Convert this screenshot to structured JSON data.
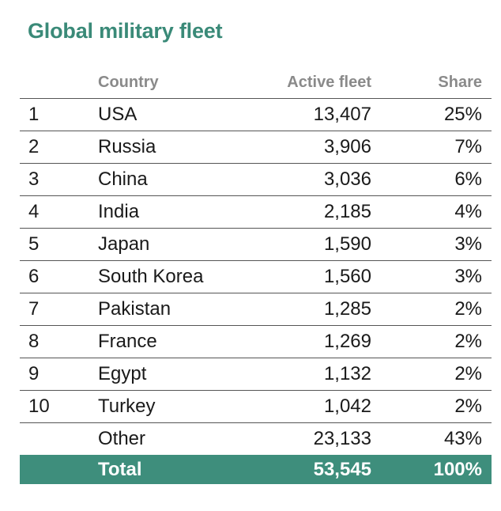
{
  "title": "Global military fleet",
  "chart_data": {
    "type": "table",
    "title": "Global military fleet",
    "columns": [
      "",
      "Country",
      "Active fleet",
      "Share"
    ],
    "rows": [
      {
        "rank": "1",
        "country": "USA",
        "fleet": "13,407",
        "share": "25%"
      },
      {
        "rank": "2",
        "country": "Russia",
        "fleet": "3,906",
        "share": "7%"
      },
      {
        "rank": "3",
        "country": "China",
        "fleet": "3,036",
        "share": "6%"
      },
      {
        "rank": "4",
        "country": "India",
        "fleet": "2,185",
        "share": "4%"
      },
      {
        "rank": "5",
        "country": "Japan",
        "fleet": "1,590",
        "share": "3%"
      },
      {
        "rank": "6",
        "country": "South Korea",
        "fleet": "1,560",
        "share": "3%"
      },
      {
        "rank": "7",
        "country": "Pakistan",
        "fleet": "1,285",
        "share": "2%"
      },
      {
        "rank": "8",
        "country": "France",
        "fleet": "1,269",
        "share": "2%"
      },
      {
        "rank": "9",
        "country": "Egypt",
        "fleet": "1,132",
        "share": "2%"
      },
      {
        "rank": "10",
        "country": "Turkey",
        "fleet": "1,042",
        "share": "2%"
      },
      {
        "rank": "",
        "country": "Other",
        "fleet": "23,133",
        "share": "43%"
      }
    ],
    "total": {
      "label": "Total",
      "fleet": "53,545",
      "share": "100%"
    }
  },
  "colors": {
    "accent": "#3e8e7c",
    "title": "#3a8a78",
    "header_text": "#8a8a8a"
  }
}
